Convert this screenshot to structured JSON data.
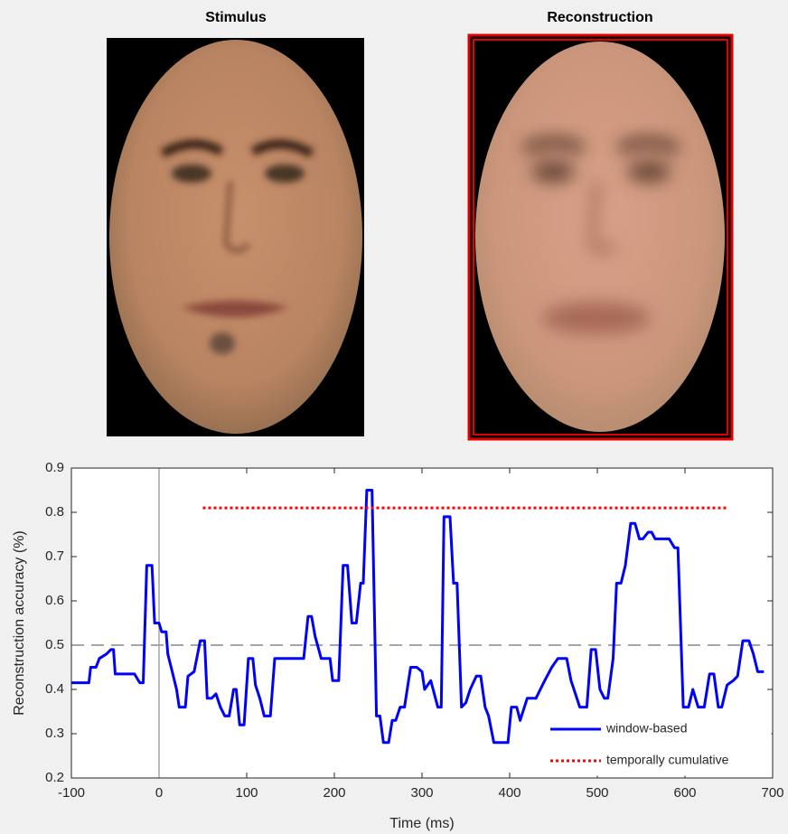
{
  "panels": [
    {
      "title": "Stimulus"
    },
    {
      "title": "Reconstruction"
    }
  ],
  "chart_data": {
    "type": "line",
    "xlabel": "Time (ms)",
    "ylabel": "Reconstruction accuracy (%)",
    "xlim": [
      -100,
      700
    ],
    "ylim": [
      0.2,
      0.9
    ],
    "xticks": [
      -100,
      0,
      100,
      200,
      300,
      400,
      500,
      600,
      700
    ],
    "yticks": [
      0.2,
      0.3,
      0.4,
      0.5,
      0.6,
      0.7,
      0.8,
      0.9
    ],
    "reference_line": 0.5,
    "vline": 0,
    "legend": "lower right",
    "series": [
      {
        "name": "window-based",
        "color": "#0000ff",
        "style": "solid",
        "x": [
          -100,
          -80,
          -78,
          -72,
          -68,
          -60,
          -55,
          -52,
          -50,
          -28,
          -22,
          -18,
          -14,
          -8,
          -5,
          0,
          3,
          8,
          10,
          15,
          20,
          23,
          30,
          33,
          40,
          47,
          52,
          55,
          60,
          65,
          70,
          75,
          80,
          85,
          88,
          92,
          97,
          102,
          107,
          110,
          115,
          120,
          127,
          132,
          165,
          170,
          174,
          178,
          185,
          195,
          198,
          205,
          210,
          215,
          220,
          225,
          230,
          233,
          237,
          243,
          248,
          252,
          256,
          262,
          266,
          270,
          275,
          280,
          287,
          294,
          300,
          303,
          310,
          318,
          322,
          325,
          332,
          336,
          340,
          345,
          350,
          355,
          362,
          367,
          372,
          376,
          382,
          398,
          402,
          408,
          412,
          420,
          430,
          435,
          440,
          448,
          455,
          465,
          470,
          480,
          488,
          493,
          498,
          503,
          508,
          512,
          518,
          522,
          527,
          532,
          538,
          543,
          548,
          552,
          558,
          562,
          566,
          582,
          588,
          592,
          598,
          604,
          609,
          615,
          622,
          628,
          633,
          638,
          642,
          648,
          655,
          660,
          666,
          673,
          678,
          683,
          690
        ],
        "values": [
          0.415,
          0.415,
          0.45,
          0.45,
          0.47,
          0.48,
          0.49,
          0.49,
          0.435,
          0.435,
          0.415,
          0.415,
          0.68,
          0.68,
          0.55,
          0.55,
          0.53,
          0.53,
          0.48,
          0.44,
          0.4,
          0.36,
          0.36,
          0.43,
          0.44,
          0.51,
          0.51,
          0.38,
          0.38,
          0.39,
          0.36,
          0.34,
          0.34,
          0.4,
          0.4,
          0.32,
          0.32,
          0.47,
          0.47,
          0.41,
          0.38,
          0.34,
          0.34,
          0.47,
          0.47,
          0.565,
          0.565,
          0.52,
          0.47,
          0.47,
          0.42,
          0.42,
          0.68,
          0.68,
          0.55,
          0.55,
          0.64,
          0.64,
          0.85,
          0.85,
          0.34,
          0.34,
          0.28,
          0.28,
          0.33,
          0.33,
          0.36,
          0.36,
          0.45,
          0.45,
          0.44,
          0.4,
          0.42,
          0.36,
          0.36,
          0.79,
          0.79,
          0.64,
          0.64,
          0.36,
          0.37,
          0.4,
          0.43,
          0.43,
          0.36,
          0.34,
          0.28,
          0.28,
          0.36,
          0.36,
          0.33,
          0.38,
          0.38,
          0.4,
          0.42,
          0.45,
          0.47,
          0.47,
          0.42,
          0.36,
          0.36,
          0.49,
          0.49,
          0.4,
          0.38,
          0.38,
          0.47,
          0.64,
          0.64,
          0.68,
          0.775,
          0.775,
          0.74,
          0.74,
          0.755,
          0.755,
          0.74,
          0.74,
          0.72,
          0.72,
          0.36,
          0.36,
          0.4,
          0.36,
          0.36,
          0.435,
          0.435,
          0.36,
          0.36,
          0.41,
          0.42,
          0.43,
          0.51,
          0.51,
          0.48,
          0.44,
          0.44
        ]
      },
      {
        "name": "temporally cumulative",
        "color": "#ff0000",
        "style": "dotted",
        "x": [
          50,
          650
        ],
        "values": [
          0.81,
          0.81
        ]
      }
    ]
  }
}
